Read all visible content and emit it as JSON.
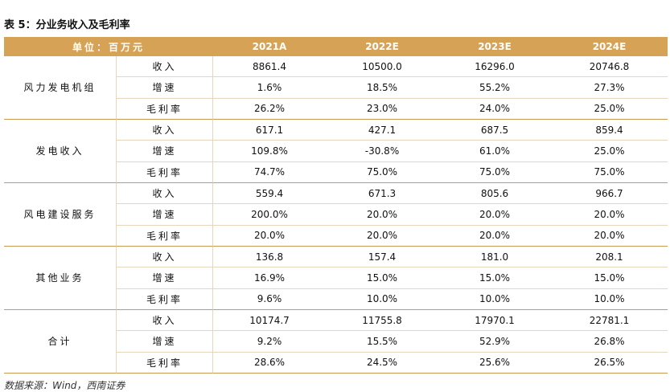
{
  "title": "表 5：分业务收入及毛利率",
  "table": {
    "header": [
      "单位：百万元",
      "2021A",
      "2022E",
      "2023E",
      "2024E"
    ],
    "groups": [
      {
        "name": "风力发电机组",
        "rows": [
          [
            "收入",
            "8861.4",
            "10500.0",
            "16296.0",
            "20746.8"
          ],
          [
            "增速",
            "1.6%",
            "18.5%",
            "55.2%",
            "27.3%"
          ],
          [
            "毛利率",
            "26.2%",
            "23.0%",
            "24.0%",
            "25.0%"
          ]
        ]
      },
      {
        "name": "发电收入",
        "rows": [
          [
            "收入",
            "617.1",
            "427.1",
            "687.5",
            "859.4"
          ],
          [
            "增速",
            "109.8%",
            "-30.8%",
            "61.0%",
            "25.0%"
          ],
          [
            "毛利率",
            "74.7%",
            "75.0%",
            "75.0%",
            "75.0%"
          ]
        ]
      },
      {
        "name": "风电建设服务",
        "rows": [
          [
            "收入",
            "559.4",
            "671.3",
            "805.6",
            "966.7"
          ],
          [
            "增速",
            "200.0%",
            "20.0%",
            "20.0%",
            "20.0%"
          ],
          [
            "毛利率",
            "20.0%",
            "20.0%",
            "20.0%",
            "20.0%"
          ]
        ]
      },
      {
        "name": "其他业务",
        "rows": [
          [
            "收入",
            "136.8",
            "157.4",
            "181.0",
            "208.1"
          ],
          [
            "增速",
            "16.9%",
            "15.0%",
            "15.0%",
            "15.0%"
          ],
          [
            "毛利率",
            "9.6%",
            "10.0%",
            "10.0%",
            "10.0%"
          ]
        ]
      },
      {
        "name": "合计",
        "rows": [
          [
            "收入",
            "10174.7",
            "11755.8",
            "17970.1",
            "22781.1"
          ],
          [
            "增速",
            "9.2%",
            "15.5%",
            "52.9%",
            "26.8%"
          ],
          [
            "毛利率",
            "28.6%",
            "24.5%",
            "25.6%",
            "26.5%"
          ]
        ]
      }
    ]
  },
  "source": "数据来源：Wind，西南证券"
}
